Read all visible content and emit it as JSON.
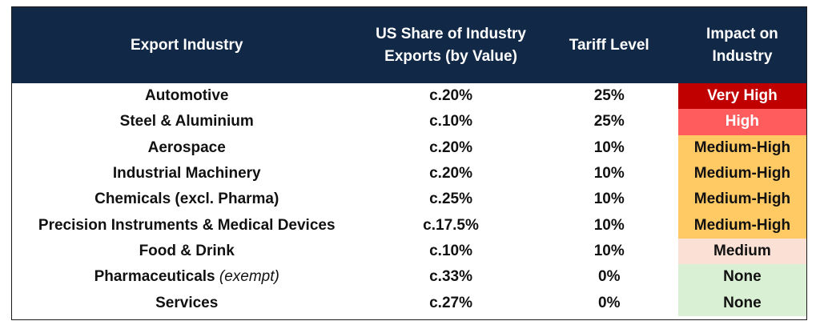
{
  "colors": {
    "header_bg": "#112846",
    "very_high": "#c00000",
    "high": "#ff5d5d",
    "medium_high": "#ffc964",
    "medium": "#fbe0d5",
    "none": "#daf0d4"
  },
  "table": {
    "headers": {
      "industry": "Export Industry",
      "share_line1": "US Share of Industry",
      "share_line2": "Exports (by Value)",
      "tariff": "Tariff Level",
      "impact_line1": "Impact on",
      "impact_line2": "Industry"
    },
    "rows": [
      {
        "industry": "Automotive",
        "note": "",
        "share": "c.20%",
        "tariff": "25%",
        "impact": "Very High",
        "impact_color": "#c00000",
        "light_text": true
      },
      {
        "industry": "Steel & Aluminium",
        "note": "",
        "share": "c.10%",
        "tariff": "25%",
        "impact": "High",
        "impact_color": "#ff5d5d",
        "light_text": true
      },
      {
        "industry": "Aerospace",
        "note": "",
        "share": "c.20%",
        "tariff": "10%",
        "impact": "Medium-High",
        "impact_color": "#ffc964",
        "light_text": false
      },
      {
        "industry": "Industrial Machinery",
        "note": "",
        "share": "c.20%",
        "tariff": "10%",
        "impact": "Medium-High",
        "impact_color": "#ffc964",
        "light_text": false
      },
      {
        "industry": "Chemicals (excl. Pharma)",
        "note": "",
        "share": "c.25%",
        "tariff": "10%",
        "impact": "Medium-High",
        "impact_color": "#ffc964",
        "light_text": false
      },
      {
        "industry": "Precision Instruments & Medical Devices",
        "note": "",
        "share": "c.17.5%",
        "tariff": "10%",
        "impact": "Medium-High",
        "impact_color": "#ffc964",
        "light_text": false
      },
      {
        "industry": "Food & Drink",
        "note": "",
        "share": "c.10%",
        "tariff": "10%",
        "impact": "Medium",
        "impact_color": "#fbe0d5",
        "light_text": false
      },
      {
        "industry": "Pharmaceuticals",
        "note": "(exempt)",
        "share": "c.33%",
        "tariff": "0%",
        "impact": "None",
        "impact_color": "#daf0d4",
        "light_text": false
      },
      {
        "industry": "Services",
        "note": "",
        "share": "c.27%",
        "tariff": "0%",
        "impact": "None",
        "impact_color": "#daf0d4",
        "light_text": false
      }
    ]
  }
}
